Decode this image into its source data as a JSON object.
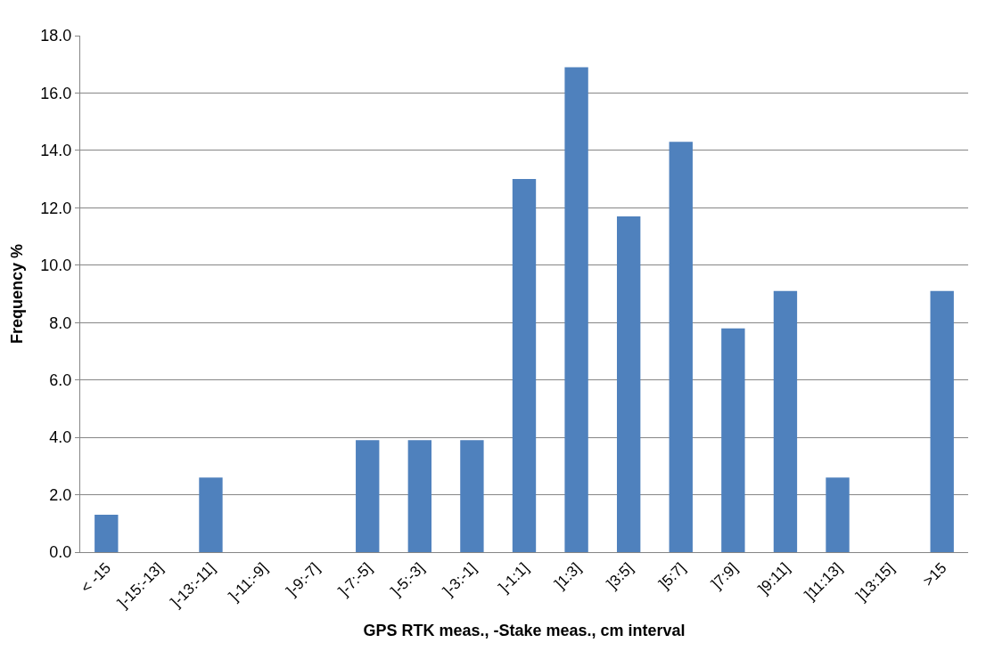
{
  "chart_data": {
    "type": "bar",
    "xlabel": "GPS RTK meas., -Stake meas., cm interval",
    "ylabel": "Frequency %",
    "categories": [
      "< -15",
      "]-15:-13]",
      "]-13:-11]",
      "]-11:-9]",
      "]-9:-7]",
      "]-7:-5]",
      "]-5:-3]",
      "]-3:-1]",
      "]-1:1]",
      "]1:3]",
      "]3:5]",
      "]5:7]",
      "]7:9]",
      "]9:11]",
      "]11:13]",
      "]13:15]",
      ">15"
    ],
    "values": [
      1.3,
      0,
      2.6,
      0,
      0,
      3.9,
      3.9,
      3.9,
      13.0,
      16.9,
      11.7,
      14.3,
      7.8,
      9.1,
      2.6,
      0,
      9.1
    ],
    "color": "#4f81bd",
    "ylim": [
      0,
      18
    ],
    "yticks": [
      {
        "value": 0,
        "label": "0.0"
      },
      {
        "value": 2,
        "label": "2.0"
      },
      {
        "value": 4,
        "label": "4.0"
      },
      {
        "value": 6,
        "label": "6.0"
      },
      {
        "value": 8,
        "label": "8.0"
      },
      {
        "value": 10,
        "label": "10.0"
      },
      {
        "value": 12,
        "label": "12.0"
      },
      {
        "value": 14,
        "label": "14.0"
      },
      {
        "value": 16,
        "label": "16.0"
      },
      {
        "value": 18,
        "label": "18.0"
      }
    ],
    "grid": "y"
  }
}
